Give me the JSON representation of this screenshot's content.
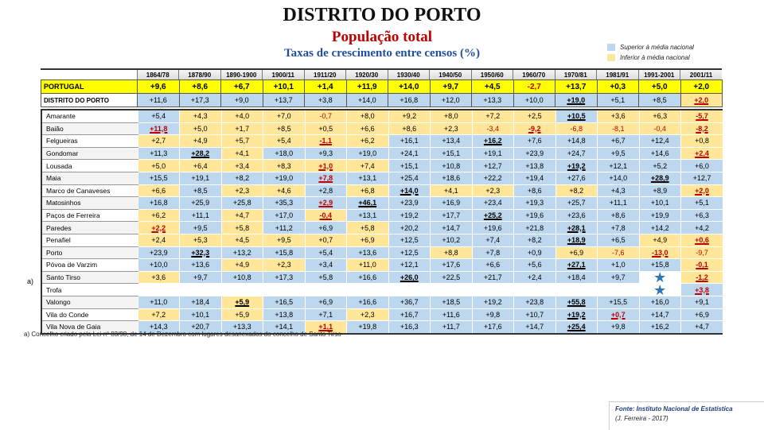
{
  "title": "DISTRITO DO PORTO",
  "subtitle": "População total",
  "subtitle2": "Taxas de crescimento entre censos (%)",
  "legend": {
    "above": {
      "label": "Superior à média nacional",
      "color": "#bdd7ee"
    },
    "below": {
      "label": "Inferior à média nacional",
      "color": "#ffe699"
    }
  },
  "columns": [
    "1864/78",
    "1878/90",
    "1890-1900",
    "1900/11",
    "1911/20",
    "1920/30",
    "1930/40",
    "1940/50",
    "1950/60",
    "1960/70",
    "1970/81",
    "1981/91",
    "1991-2001",
    "2001/11"
  ],
  "portugal": {
    "label": "PORTUGAL",
    "values": [
      "+9,6",
      "+8,6",
      "+6,7",
      "+10,1",
      "+1,4",
      "+11,9",
      "+14,0",
      "+9,7",
      "+4,5",
      "-2,7",
      "+13,7",
      "+0,3",
      "+5,0",
      "+2,0"
    ]
  },
  "distrito": {
    "label": "DISTRITO DO PORTO",
    "values": [
      "+11,6",
      "+17,3",
      "+9,0",
      "+13,7",
      "+3,8",
      "+14,0",
      "+16,8",
      "+12,0",
      "+13,3",
      "+10,0",
      "+19,0",
      "+5,1",
      "+8,5",
      "+2,0"
    ]
  },
  "municipalities": [
    {
      "name": "Amarante",
      "values": [
        "+5,4",
        "+4,3",
        "+4,0",
        "+7,0",
        "-0,7",
        "+8,0",
        "+9,2",
        "+8,0",
        "+7,2",
        "+2,5",
        "+10,5",
        "+3,6",
        "+6,3",
        "-5,7"
      ]
    },
    {
      "name": "Baião",
      "values": [
        "+11,8",
        "+5,0",
        "+1,7",
        "+8,5",
        "+0,5",
        "+6,6",
        "+8,6",
        "+2,3",
        "-3,4",
        "-9,2",
        "-6,8",
        "-8,1",
        "-0,4",
        "-8,2"
      ]
    },
    {
      "name": "Felgueiras",
      "values": [
        "+2,7",
        "+4,9",
        "+5,7",
        "+5,4",
        "-1,1",
        "+6,2",
        "+16,1",
        "+13,4",
        "+16,2",
        "+7,6",
        "+14,8",
        "+6,7",
        "+12,4",
        "+0,8"
      ]
    },
    {
      "name": "Gondomar",
      "values": [
        "+11,3",
        "+28,2",
        "+4,1",
        "+18,0",
        "+9,3",
        "+19,0",
        "+24,1",
        "+15,1",
        "+19,1",
        "+23,9",
        "+24,7",
        "+9,5",
        "+14,6",
        "+2,4"
      ]
    },
    {
      "name": "Lousada",
      "values": [
        "+5,0",
        "+6,4",
        "+3,4",
        "+8,3",
        "+1,0",
        "+7,4",
        "+15,1",
        "+10,8",
        "+12,7",
        "+13,8",
        "+19,2",
        "+12,1",
        "+5,2",
        "+6,0"
      ]
    },
    {
      "name": "Maia",
      "values": [
        "+15,5",
        "+19,1",
        "+8,2",
        "+19,0",
        "+7,8",
        "+13,1",
        "+25,4",
        "+18,6",
        "+22,2",
        "+19,4",
        "+27,6",
        "+14,0",
        "+28,9",
        "+12,7"
      ]
    },
    {
      "name": "Marco de Canaveses",
      "values": [
        "+6,6",
        "+8,5",
        "+2,3",
        "+4,6",
        "+2,8",
        "+6,8",
        "+14,0",
        "+4,1",
        "+2,3",
        "+8,6",
        "+8,2",
        "+4,3",
        "+8,9",
        "+2,0"
      ]
    },
    {
      "name": "Matosinhos",
      "values": [
        "+16,8",
        "+25,9",
        "+25,8",
        "+35,3",
        "+2,9",
        "+46,1",
        "+23,9",
        "+16,9",
        "+23,4",
        "+19,3",
        "+25,7",
        "+11,1",
        "+10,1",
        "+5,1"
      ]
    },
    {
      "name": "Paços de Ferreira",
      "values": [
        "+6,2",
        "+11,1",
        "+4,7",
        "+17,0",
        "-0,4",
        "+13,1",
        "+19,2",
        "+17,7",
        "+25,2",
        "+19,6",
        "+23,6",
        "+8,6",
        "+19,9",
        "+6,3"
      ]
    },
    {
      "name": "Paredes",
      "values": [
        "+2,2",
        "+9,5",
        "+5,8",
        "+11,2",
        "+6,9",
        "+5,8",
        "+20,2",
        "+14,7",
        "+19,6",
        "+21,8",
        "+28,1",
        "+7,8",
        "+14,2",
        "+4,2"
      ]
    },
    {
      "name": "Penafiel",
      "values": [
        "+2,4",
        "+5,3",
        "+4,5",
        "+9,5",
        "+0,7",
        "+6,9",
        "+12,5",
        "+10,2",
        "+7,4",
        "+8,2",
        "+18,9",
        "+6,5",
        "+4,9",
        "+0,6"
      ]
    },
    {
      "name": "Porto",
      "values": [
        "+23,9",
        "+32,3",
        "+13,2",
        "+15,8",
        "+5,4",
        "+13,6",
        "+12,5",
        "+8,8",
        "+7,8",
        "+0,9",
        "+6,9",
        "-7,6",
        "-13,0",
        "-9,7"
      ]
    },
    {
      "name": "Póvoa de Varzim",
      "values": [
        "+10,0",
        "+13,6",
        "+4,9",
        "+2,3",
        "+3,4",
        "+11,0",
        "+12,1",
        "+17,6",
        "+6,6",
        "+5,6",
        "+27,1",
        "+1,0",
        "+15,8",
        "-0,1"
      ]
    },
    {
      "name": "Santo Tirso",
      "values": [
        "+3,6",
        "+9,7",
        "+10,8",
        "+17,3",
        "+5,8",
        "+16,6",
        "+26,0",
        "+22,5",
        "+21,7",
        "+2,4",
        "+18,4",
        "+9,7",
        "★",
        "-1,2"
      ]
    },
    {
      "name": "Trofa",
      "values": [
        "",
        "",
        "",
        "",
        "",
        "",
        "",
        "",
        "",
        "",
        "",
        "",
        "★",
        "+3,8"
      ]
    },
    {
      "name": "Valongo",
      "values": [
        "+11,0",
        "+18,4",
        "+5,9",
        "+16,5",
        "+6,9",
        "+16,6",
        "+36,7",
        "+18,5",
        "+19,2",
        "+23,8",
        "+55,8",
        "+15,5",
        "+16,0",
        "+9,1"
      ]
    },
    {
      "name": "Vila do Conde",
      "values": [
        "+7,2",
        "+10,1",
        "+5,9",
        "+13,8",
        "+7,1",
        "+2,3",
        "+16,7",
        "+11,6",
        "+9,8",
        "+10,7",
        "+19,2",
        "+0,7",
        "+14,7",
        "+6,9"
      ]
    },
    {
      "name": "Vila Nova de Gaia",
      "values": [
        "+14,3",
        "+20,7",
        "+13,3",
        "+14,1",
        "+1,1",
        "+19,8",
        "+16,3",
        "+11,7",
        "+17,6",
        "+14,7",
        "+25,4",
        "+9,8",
        "+16,2",
        "+4,7"
      ]
    }
  ],
  "aside_label": "a)",
  "footnote": "a) Concelho criado pela Lei nº 83/98, de 14 de Dezembro com lugares  desanexados do concelho de Santo Tirso",
  "source": "Fonte: Instituto Nacional de Estatística",
  "credit": "(J. Ferreira - 2017)"
}
